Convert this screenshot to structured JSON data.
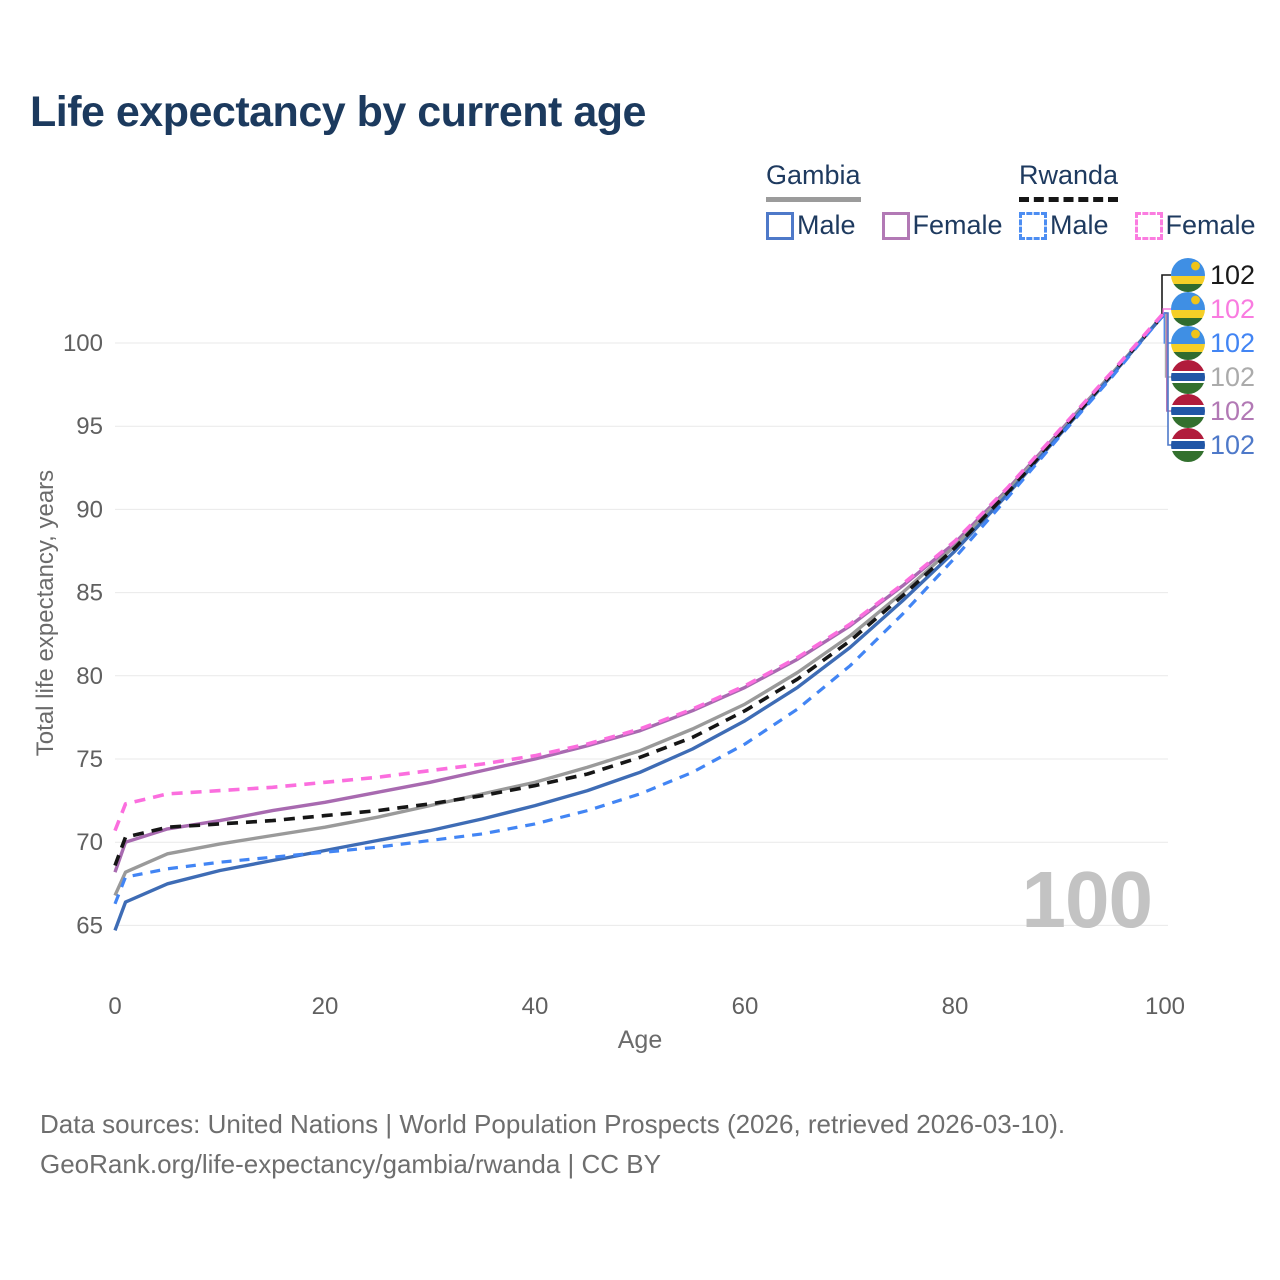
{
  "title": "Life expectancy by current age",
  "legend": {
    "gambia": {
      "title": "Gambia",
      "male": "Male",
      "female": "Female",
      "male_color": "#4e79c9",
      "female_color": "#b279b5",
      "underline_color": "#9b9b9b",
      "line_style": "solid"
    },
    "rwanda": {
      "title": "Rwanda",
      "male": "Male",
      "female": "Female",
      "male_color": "#4c8df2",
      "female_color": "#fb7ce0",
      "underline_color": "#161616",
      "line_style": "dashed"
    }
  },
  "footer": {
    "line1": "Data sources: United Nations | World Population Prospects (2026, retrieved 2026-03-10).",
    "line2": "GeoRank.org/life-expectancy/gambia/rwanda | CC BY"
  },
  "colors": {
    "title_text": "#1c3a5e",
    "axis_text": "#606060",
    "grid": "#e9e9e9",
    "watermark_text": "#c3c3c3",
    "footer_text": "#6e6e6e"
  },
  "flags": {
    "Rwanda": {
      "blue": "#3F8FE4",
      "yellow": "#F5CF27",
      "green": "#2F6B2F",
      "sun": "#F0C419"
    },
    "Gambia": {
      "red": "#B11C3C",
      "white": "#FFFFFF",
      "blue": "#2156A6",
      "green": "#33702E"
    }
  },
  "chart_data": {
    "type": "line",
    "title": "Life expectancy by current age",
    "xlabel": "Age",
    "ylabel": "Total life expectancy, years",
    "xlim": [
      0,
      100
    ],
    "ylim": [
      63.5,
      103
    ],
    "xticks": [
      0,
      20,
      40,
      60,
      80,
      100
    ],
    "yticks": [
      65,
      70,
      75,
      80,
      85,
      90,
      95,
      100
    ],
    "grid": "horizontal",
    "legend_position": "top-right",
    "watermark": "100",
    "ages": [
      0,
      1,
      5,
      10,
      15,
      20,
      25,
      30,
      35,
      40,
      45,
      50,
      55,
      60,
      65,
      70,
      75,
      80,
      85,
      90,
      95,
      100
    ],
    "series": [
      {
        "id": "gambia-female",
        "name": "Gambia Female",
        "country": "Gambia",
        "sex": "Female",
        "style": "solid",
        "color": "#a86ab0",
        "dash": null,
        "width": 3.4,
        "values": [
          68.2,
          70.0,
          70.8,
          71.3,
          71.9,
          72.4,
          73.0,
          73.6,
          74.3,
          75.0,
          75.8,
          76.7,
          77.9,
          79.3,
          81.0,
          83.0,
          85.4,
          88.0,
          91.2,
          94.7,
          98.2,
          101.8
        ]
      },
      {
        "id": "gambia-both",
        "name": "Gambia Both sexes",
        "country": "Gambia",
        "sex": "Both",
        "style": "solid",
        "color": "#9a9a9a",
        "dash": null,
        "width": 3.4,
        "values": [
          66.8,
          68.2,
          69.3,
          69.9,
          70.4,
          70.9,
          71.5,
          72.2,
          72.9,
          73.6,
          74.5,
          75.5,
          76.8,
          78.3,
          80.2,
          82.4,
          85.0,
          87.8,
          91.1,
          94.6,
          98.2,
          101.8
        ]
      },
      {
        "id": "gambia-male",
        "name": "Gambia Male",
        "country": "Gambia",
        "sex": "Male",
        "style": "solid",
        "color": "#3e6cb5",
        "dash": null,
        "width": 3.4,
        "values": [
          64.7,
          66.4,
          67.5,
          68.3,
          68.9,
          69.5,
          70.1,
          70.7,
          71.4,
          72.2,
          73.1,
          74.2,
          75.6,
          77.3,
          79.3,
          81.7,
          84.5,
          87.5,
          90.9,
          94.5,
          98.1,
          101.8
        ]
      },
      {
        "id": "rwanda-both",
        "name": "Rwanda Both sexes",
        "country": "Rwanda",
        "sex": "Both",
        "style": "dashed",
        "color": "#161616",
        "dash": "11 8",
        "width": 3.6,
        "values": [
          68.6,
          70.3,
          70.9,
          71.1,
          71.3,
          71.6,
          71.9,
          72.3,
          72.8,
          73.4,
          74.1,
          75.1,
          76.3,
          77.9,
          79.8,
          82.1,
          84.8,
          87.7,
          91.0,
          94.6,
          98.2,
          101.8
        ]
      },
      {
        "id": "rwanda-male",
        "name": "Rwanda Male",
        "country": "Rwanda",
        "sex": "Male",
        "style": "dashed",
        "color": "#4285f4",
        "dash": "10 8",
        "width": 3.2,
        "values": [
          66.3,
          67.9,
          68.4,
          68.8,
          69.1,
          69.4,
          69.7,
          70.1,
          70.5,
          71.1,
          71.9,
          72.9,
          74.2,
          75.9,
          78.0,
          80.6,
          83.7,
          87.1,
          90.7,
          94.4,
          98.0,
          101.8
        ]
      },
      {
        "id": "rwanda-female",
        "name": "Rwanda Female",
        "country": "Rwanda",
        "sex": "Female",
        "style": "dashed",
        "color": "#fb6ede",
        "dash": "11 8",
        "width": 3.6,
        "values": [
          70.7,
          72.3,
          72.9,
          73.1,
          73.3,
          73.6,
          73.9,
          74.3,
          74.7,
          75.2,
          75.9,
          76.8,
          78.0,
          79.4,
          81.1,
          83.1,
          85.5,
          88.1,
          91.3,
          94.8,
          98.3,
          101.9
        ]
      }
    ],
    "end_labels": [
      {
        "country": "Rwanda",
        "series": "rwanda-both",
        "value": "102",
        "color": "#1a1a1a"
      },
      {
        "country": "Rwanda",
        "series": "rwanda-female",
        "value": "102",
        "color": "#f97ce0"
      },
      {
        "country": "Rwanda",
        "series": "rwanda-male",
        "value": "102",
        "color": "#4285f4"
      },
      {
        "country": "Gambia",
        "series": "gambia-both",
        "value": "102",
        "color": "#ababab"
      },
      {
        "country": "Gambia",
        "series": "gambia-female",
        "value": "102",
        "color": "#b279b5"
      },
      {
        "country": "Gambia",
        "series": "gambia-male",
        "value": "102",
        "color": "#4e79c9"
      }
    ]
  }
}
